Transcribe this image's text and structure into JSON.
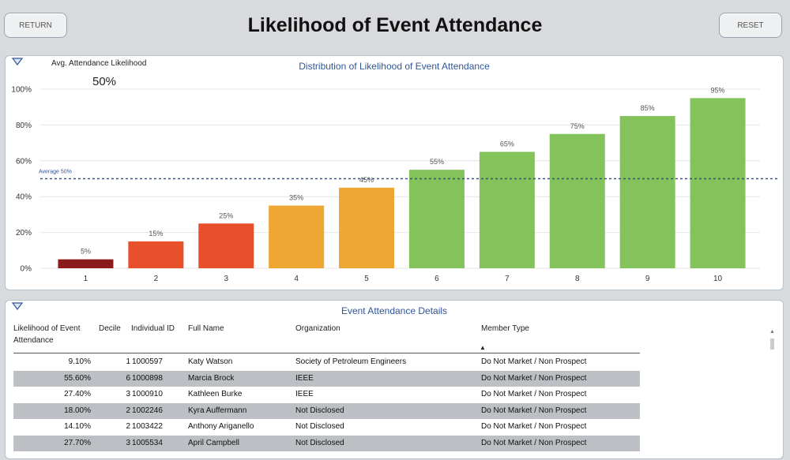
{
  "header": {
    "title": "Likelihood of Event Attendance",
    "return_label": "RETURN",
    "reset_label": "RESET"
  },
  "chart_panel": {
    "avg_label": "Avg. Attendance Likelihood",
    "avg_value": "50%",
    "average_line_label": "Average 50%"
  },
  "chart_data": {
    "type": "bar",
    "title": "Distribution of Likelihood of Event Attendance",
    "categories": [
      "1",
      "2",
      "3",
      "4",
      "5",
      "6",
      "7",
      "8",
      "9",
      "10"
    ],
    "values": [
      5,
      15,
      25,
      35,
      45,
      55,
      65,
      75,
      85,
      95
    ],
    "value_labels": [
      "5%",
      "15%",
      "25%",
      "35%",
      "45%",
      "55%",
      "65%",
      "75%",
      "85%",
      "95%"
    ],
    "bar_colors": [
      "#8b1a1a",
      "#e8502c",
      "#e8502c",
      "#eea733",
      "#eea733",
      "#84c25b",
      "#84c25b",
      "#84c25b",
      "#84c25b",
      "#84c25b"
    ],
    "y_ticks": [
      0,
      20,
      40,
      60,
      80,
      100
    ],
    "y_tick_labels": [
      "0%",
      "20%",
      "40%",
      "60%",
      "80%",
      "100%"
    ],
    "ylim": [
      0,
      100
    ],
    "average_line": 50,
    "average_line_color": "#2f5597",
    "grid": true
  },
  "table": {
    "title": "Event Attendance Details",
    "columns": {
      "likelihood": "Likelihood of Event Attendance",
      "decile": "Decile",
      "id": "Individual ID",
      "name": "Full Name",
      "org": "Organization",
      "member": "Member Type"
    },
    "sort_indicator": "▲",
    "rows": [
      {
        "likelihood": "9.10%",
        "decile": "1",
        "id": "1000597",
        "name": "Katy Watson",
        "org": "Society of Petroleum Engineers",
        "member": "Do Not Market / Non Prospect"
      },
      {
        "likelihood": "55.60%",
        "decile": "6",
        "id": "1000898",
        "name": "Marcia Brock",
        "org": "IEEE",
        "member": "Do Not Market / Non Prospect"
      },
      {
        "likelihood": "27.40%",
        "decile": "3",
        "id": "1000910",
        "name": "Kathleen Burke",
        "org": "IEEE",
        "member": "Do Not Market / Non Prospect"
      },
      {
        "likelihood": "18.00%",
        "decile": "2",
        "id": "1002246",
        "name": "Kyra Auffermann",
        "org": "Not Disclosed",
        "member": "Do Not Market / Non Prospect"
      },
      {
        "likelihood": "14.10%",
        "decile": "2",
        "id": "1003422",
        "name": "Anthony Ariganello",
        "org": "Not Disclosed",
        "member": "Do Not Market / Non Prospect"
      },
      {
        "likelihood": "27.70%",
        "decile": "3",
        "id": "1005534",
        "name": "April Campbell",
        "org": "Not Disclosed",
        "member": "Do Not Market / Non Prospect"
      }
    ]
  },
  "icons": {
    "filter": "filter-icon",
    "scroll_up": "scroll-up-arrow-icon"
  }
}
